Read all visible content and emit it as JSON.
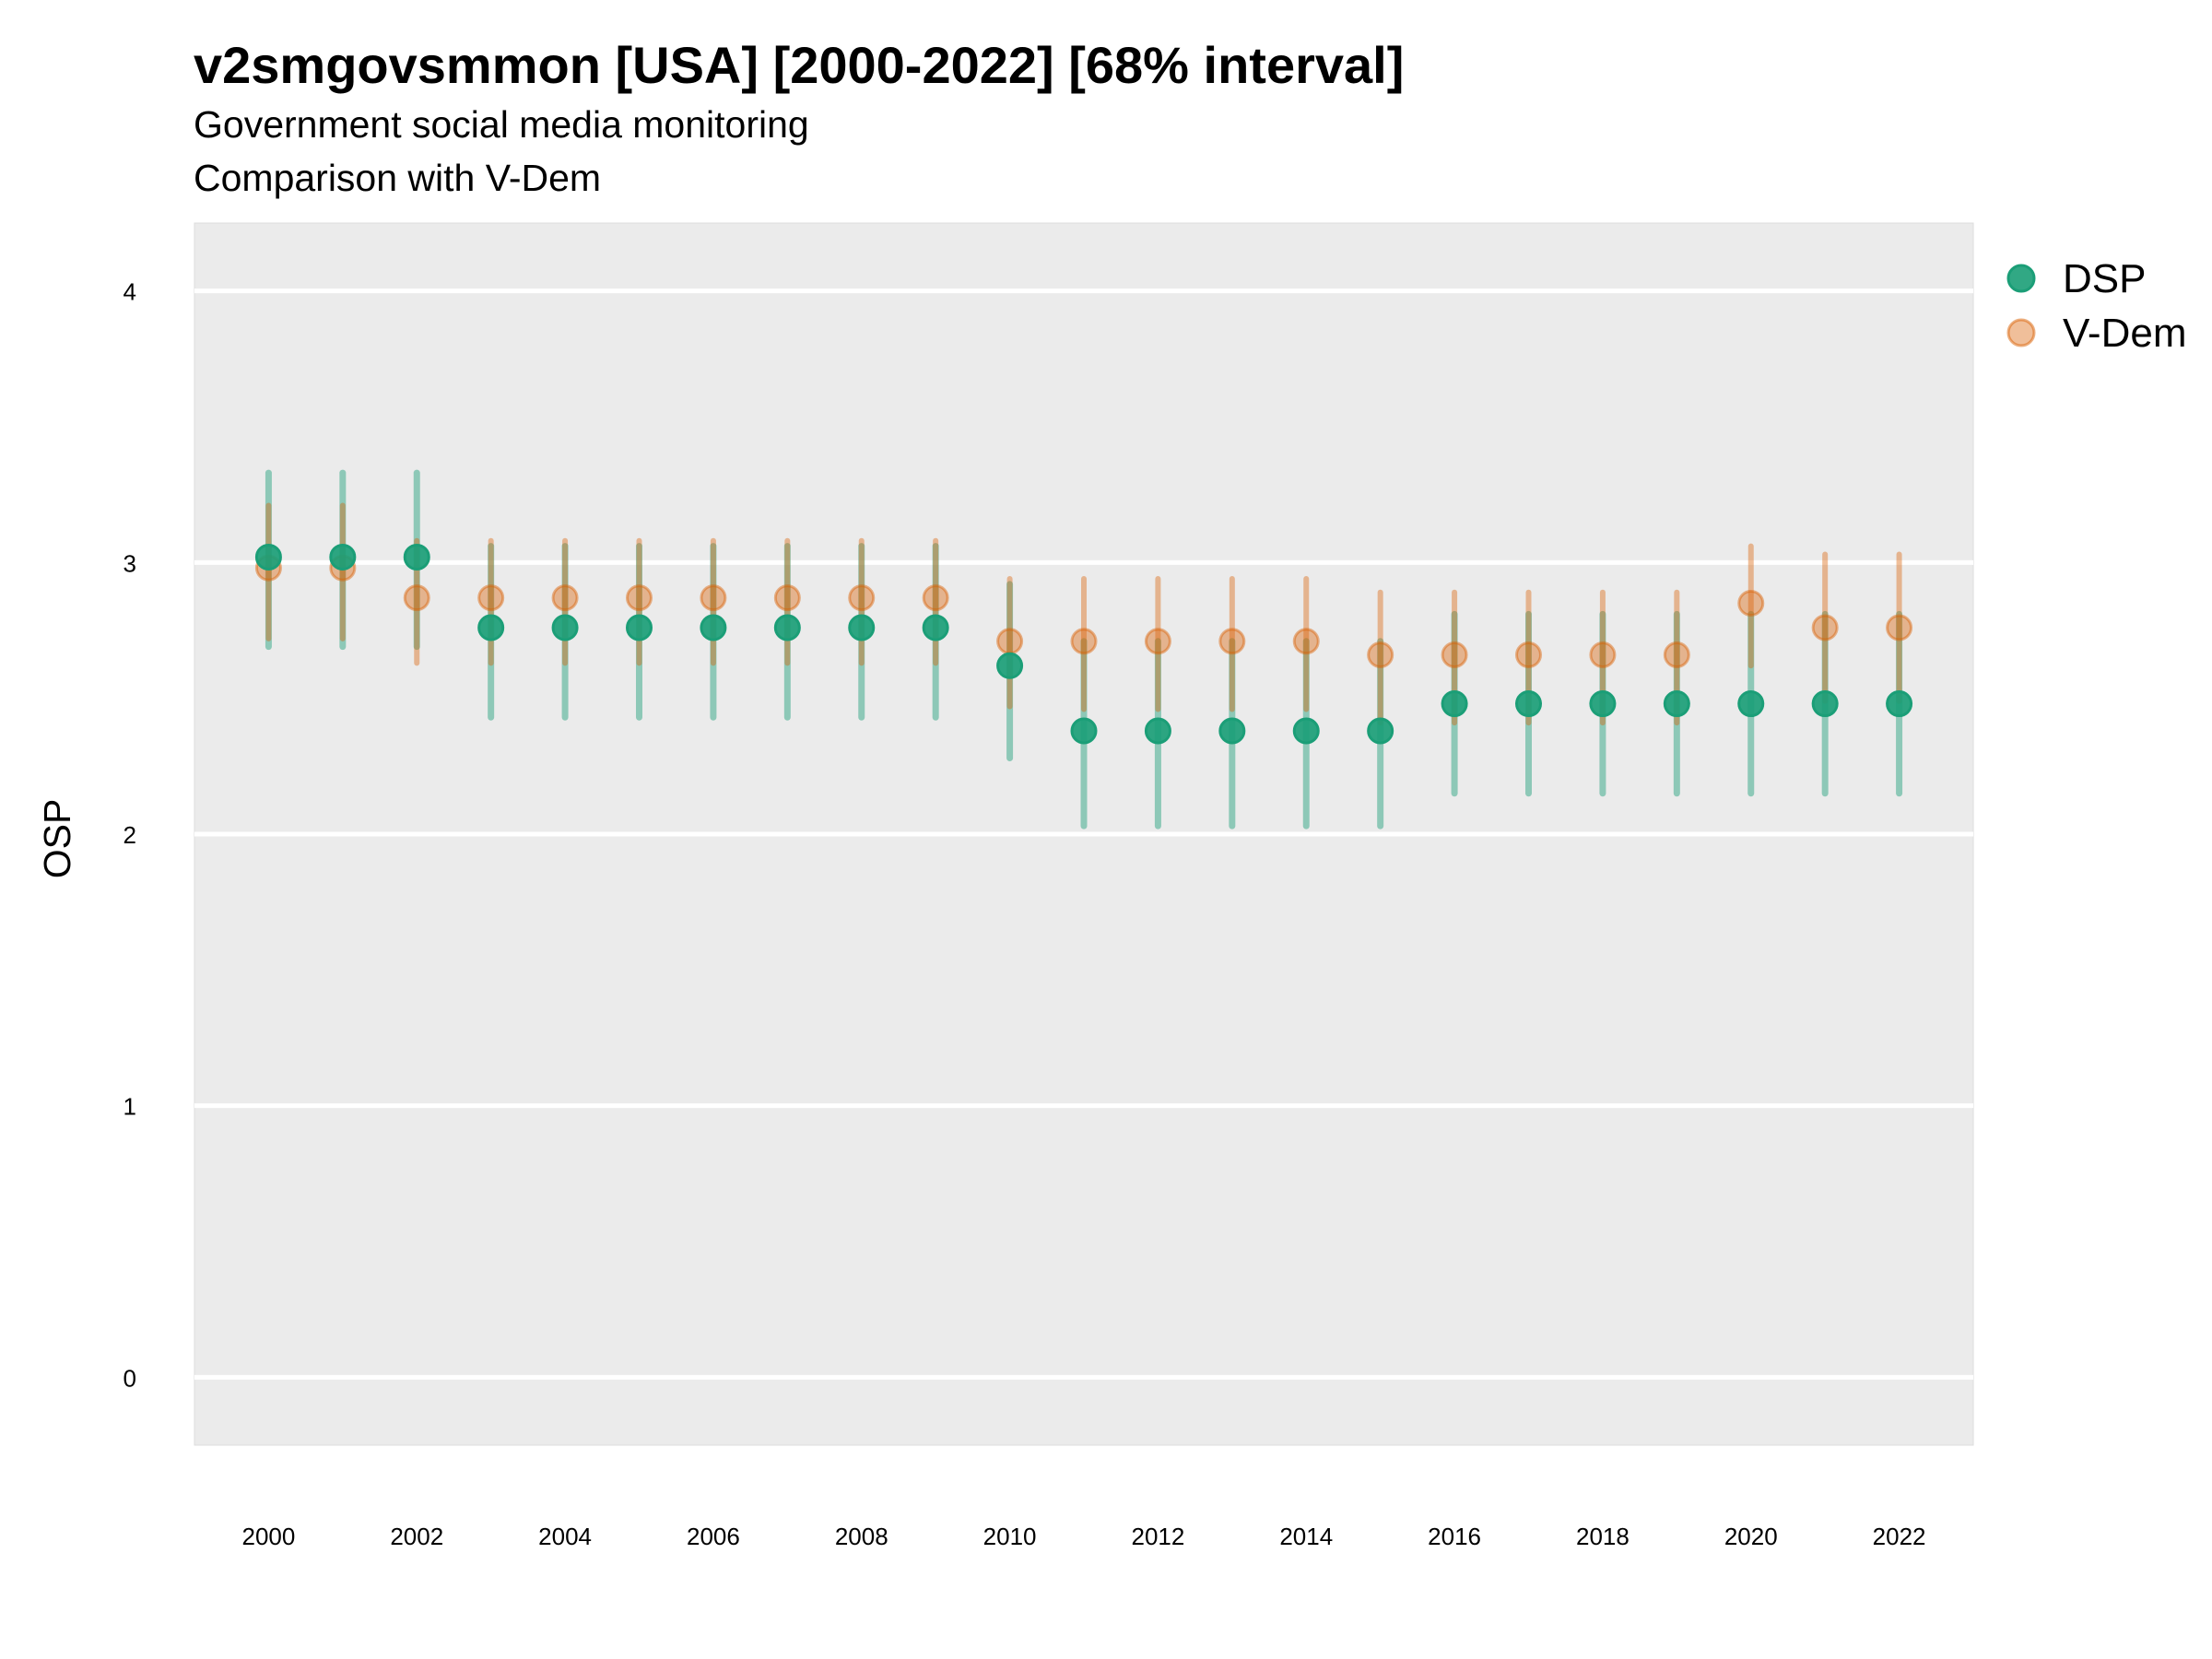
{
  "title": "v2smgovsmmon [USA] [2000-2022] [68% interval]",
  "subtitle": "Government social media monitoring",
  "caption": "Comparison with V-Dem",
  "colors": {
    "panel": "#ebebeb",
    "grid": "#ffffff",
    "dsp": "#1b9e77",
    "vdem": "#d95f02"
  },
  "chart_data": {
    "type": "scatter",
    "title": "v2smgovsmmon [USA] [2000-2022] [68% interval]",
    "subtitle": "Government social media monitoring",
    "caption": "Comparison with V-Dem",
    "ylabel": "OSP",
    "xlabel": "",
    "ylim": [
      -0.25,
      4.25
    ],
    "xlim": [
      1999,
      2023
    ],
    "y_ticks": [
      0,
      1,
      2,
      3,
      4
    ],
    "x_ticks": [
      2000,
      2002,
      2004,
      2006,
      2008,
      2010,
      2012,
      2014,
      2016,
      2018,
      2020,
      2022
    ],
    "grid": true,
    "legend_position": "right",
    "x": [
      2000,
      2001,
      2002,
      2003,
      2004,
      2005,
      2006,
      2007,
      2008,
      2009,
      2010,
      2011,
      2012,
      2013,
      2014,
      2015,
      2016,
      2017,
      2018,
      2019,
      2020,
      2021,
      2022
    ],
    "series": [
      {
        "name": "DSP",
        "color": "#1b9e77",
        "values": [
          3.02,
          3.02,
          3.02,
          2.76,
          2.76,
          2.76,
          2.76,
          2.76,
          2.76,
          2.76,
          2.62,
          2.38,
          2.38,
          2.38,
          2.38,
          2.38,
          2.48,
          2.48,
          2.48,
          2.48,
          2.48,
          2.48,
          2.48
        ],
        "lower": [
          2.69,
          2.69,
          2.69,
          2.43,
          2.43,
          2.43,
          2.43,
          2.43,
          2.43,
          2.43,
          2.28,
          2.03,
          2.03,
          2.03,
          2.03,
          2.03,
          2.15,
          2.15,
          2.15,
          2.15,
          2.15,
          2.15,
          2.15
        ],
        "upper": [
          3.33,
          3.33,
          3.33,
          3.06,
          3.06,
          3.06,
          3.06,
          3.06,
          3.06,
          3.06,
          2.92,
          2.71,
          2.71,
          2.71,
          2.71,
          2.71,
          2.81,
          2.81,
          2.81,
          2.81,
          2.81,
          2.81,
          2.81
        ]
      },
      {
        "name": "V-Dem",
        "color": "#d95f02",
        "values": [
          2.98,
          2.98,
          2.87,
          2.87,
          2.87,
          2.87,
          2.87,
          2.87,
          2.87,
          2.87,
          2.71,
          2.71,
          2.71,
          2.71,
          2.71,
          2.66,
          2.66,
          2.66,
          2.66,
          2.66,
          2.85,
          2.76,
          2.76
        ],
        "lower": [
          2.72,
          2.72,
          2.63,
          2.63,
          2.63,
          2.63,
          2.63,
          2.63,
          2.63,
          2.63,
          2.47,
          2.46,
          2.46,
          2.46,
          2.46,
          2.41,
          2.41,
          2.41,
          2.41,
          2.41,
          2.62,
          2.49,
          2.49
        ],
        "upper": [
          3.21,
          3.21,
          3.08,
          3.08,
          3.08,
          3.08,
          3.08,
          3.08,
          3.08,
          3.08,
          2.94,
          2.94,
          2.94,
          2.94,
          2.94,
          2.89,
          2.89,
          2.89,
          2.89,
          2.89,
          3.06,
          3.03,
          3.03
        ]
      }
    ]
  }
}
